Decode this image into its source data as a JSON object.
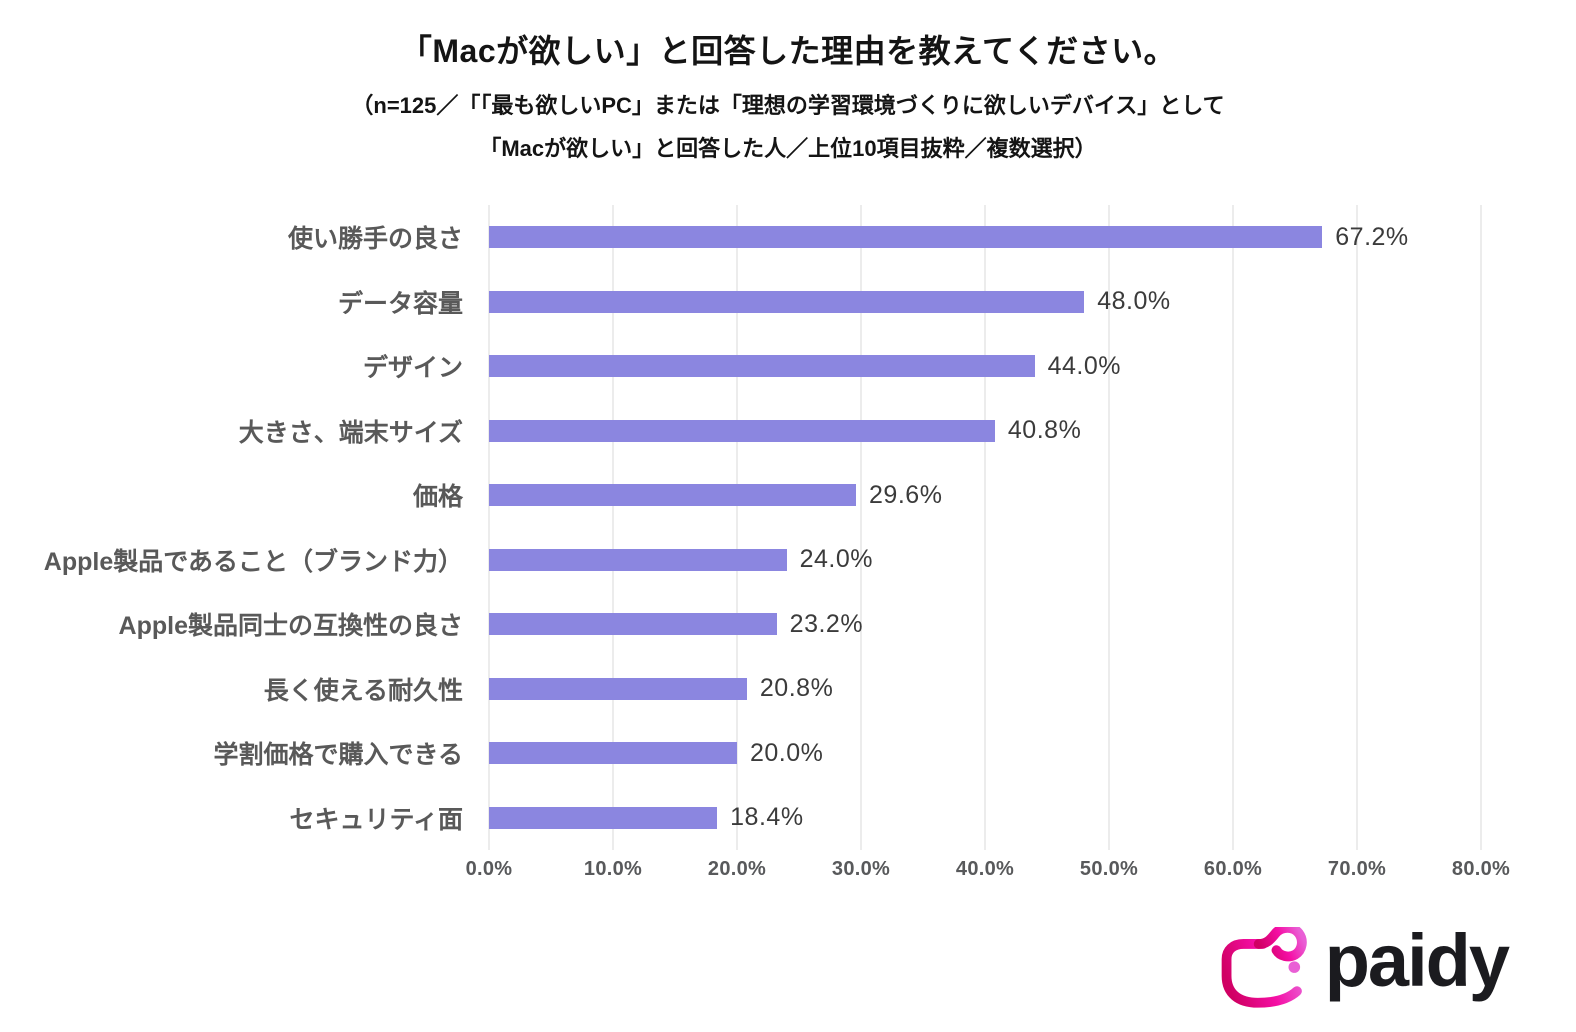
{
  "chart_data": {
    "type": "bar",
    "orientation": "horizontal",
    "title": "「Macが欲しい」と回答した理由を教えてください。",
    "subtitle_lines": [
      "（n=125／「「最も欲しいPC」または「理想の学習環境づくりに欲しいデバイス」として",
      "「Macが欲しい」と回答した人／上位10項目抜粋／複数選択）"
    ],
    "categories": [
      "使い勝手の良さ",
      "データ容量",
      "デザイン",
      "大きさ、端末サイズ",
      "価格",
      "Apple製品であること（ブランド力）",
      "Apple製品同士の互換性の良さ",
      "長く使える耐久性",
      "学割価格で購入できる",
      "セキュリティ面"
    ],
    "values": [
      67.2,
      48.0,
      44.0,
      40.8,
      29.6,
      24.0,
      23.2,
      20.8,
      20.0,
      18.4
    ],
    "value_labels": [
      "67.2%",
      "48.0%",
      "44.0%",
      "40.8%",
      "29.6%",
      "24.0%",
      "23.2%",
      "20.8%",
      "20.0%",
      "18.4%"
    ],
    "xlabel": "",
    "ylabel": "",
    "xlim": [
      0,
      80
    ],
    "x_ticks": [
      "0.0%",
      "10.0%",
      "20.0%",
      "30.0%",
      "40.0%",
      "50.0%",
      "60.0%",
      "70.0%",
      "80.0%"
    ],
    "grid": true,
    "legend": false,
    "colors": {
      "bar": "#8B86E0",
      "gridline": "#D9D9D9",
      "category_label": "#595959",
      "value_label": "#3B3B3B",
      "tick_label": "#58595B",
      "title": "#141414"
    }
  },
  "logo": {
    "text": "paidy",
    "text_color": "#1B1B1F",
    "mark_gradient_start": "#D00063",
    "mark_gradient_mid": "#F50FA5",
    "mark_gradient_end": "#E95FD5"
  }
}
